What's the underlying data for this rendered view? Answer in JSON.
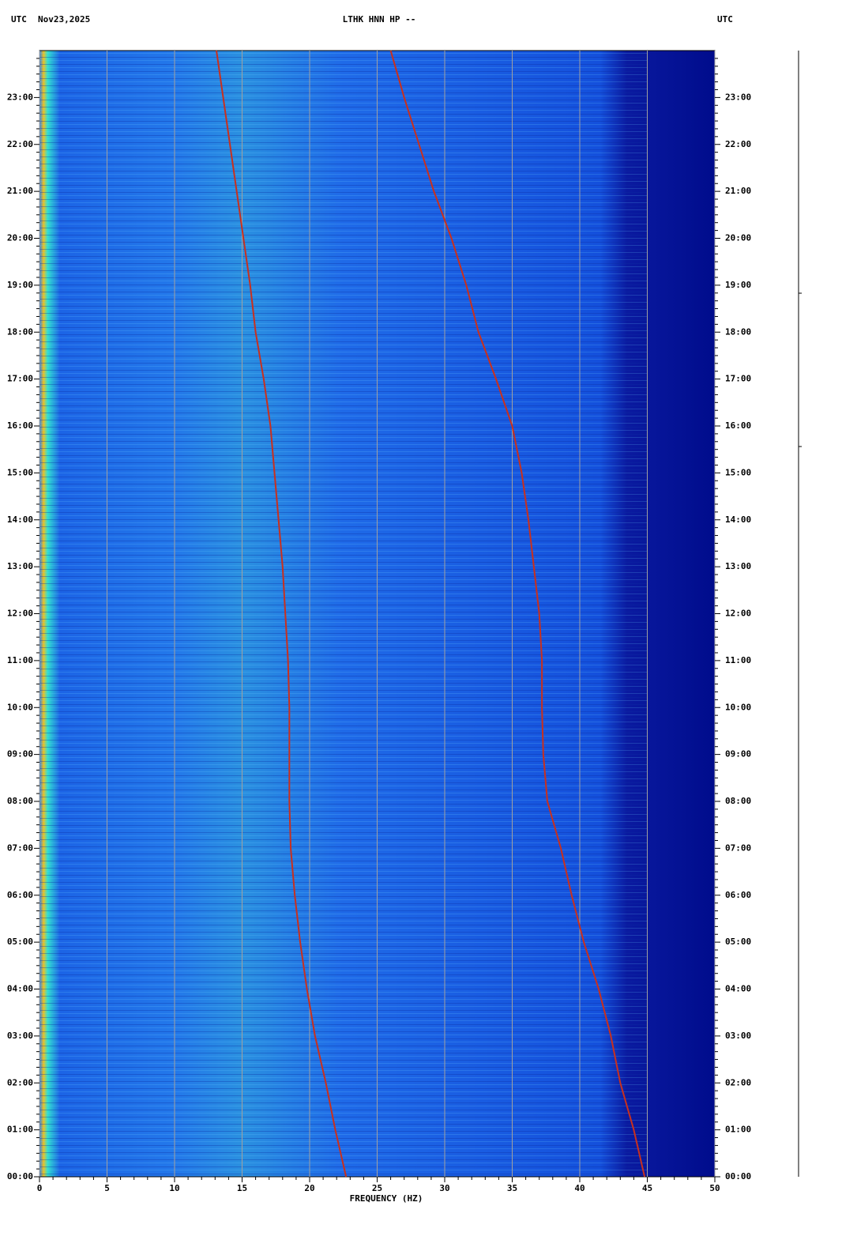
{
  "chart_data": {
    "type": "spectrogram",
    "header_left_1": "UTC",
    "header_left_2": "Nov23,2025",
    "title": "LTHK HNN HP --",
    "header_right": "UTC",
    "xlabel": "FREQUENCY (HZ)",
    "xlim": [
      0,
      50
    ],
    "xticks": [
      0,
      5,
      10,
      15,
      20,
      25,
      30,
      35,
      40,
      45,
      50
    ],
    "ylim": [
      0,
      24
    ],
    "yticks": [
      {
        "value": 0,
        "label": "00:00"
      },
      {
        "value": 1,
        "label": "01:00"
      },
      {
        "value": 2,
        "label": "02:00"
      },
      {
        "value": 3,
        "label": "03:00"
      },
      {
        "value": 4,
        "label": "04:00"
      },
      {
        "value": 5,
        "label": "05:00"
      },
      {
        "value": 6,
        "label": "06:00"
      },
      {
        "value": 7,
        "label": "07:00"
      },
      {
        "value": 8,
        "label": "08:00"
      },
      {
        "value": 9,
        "label": "09:00"
      },
      {
        "value": 10,
        "label": "10:00"
      },
      {
        "value": 11,
        "label": "11:00"
      },
      {
        "value": 12,
        "label": "12:00"
      },
      {
        "value": 13,
        "label": "13:00"
      },
      {
        "value": 14,
        "label": "14:00"
      },
      {
        "value": 15,
        "label": "15:00"
      },
      {
        "value": 16,
        "label": "16:00"
      },
      {
        "value": 17,
        "label": "17:00"
      },
      {
        "value": 18,
        "label": "18:00"
      },
      {
        "value": 19,
        "label": "19:00"
      },
      {
        "value": 20,
        "label": "20:00"
      },
      {
        "value": 21,
        "label": "21:00"
      },
      {
        "value": 22,
        "label": "22:00"
      },
      {
        "value": 23,
        "label": "23:00"
      }
    ],
    "grid": true,
    "series": [
      {
        "color": "#c8301e",
        "x": [
          22.7,
          21.9,
          21.2,
          20.4,
          19.8,
          19.3,
          18.9,
          18.6,
          18.5,
          18.5,
          18.5,
          18.4,
          18.2,
          18.0,
          17.7,
          17.4,
          17.1,
          16.6,
          16.0,
          15.6,
          15.1,
          14.6,
          14.1,
          13.6,
          13.1
        ],
        "y": [
          0,
          1,
          2,
          3,
          4,
          5,
          6,
          7,
          8,
          9,
          10,
          11,
          12,
          13,
          14,
          15,
          16,
          17,
          18,
          19,
          20,
          21,
          22,
          23,
          24
        ]
      },
      {
        "color": "#c8301e",
        "x": [
          44.8,
          44.0,
          43.0,
          42.3,
          41.4,
          40.3,
          39.4,
          38.6,
          37.6,
          37.3,
          37.2,
          37.2,
          37.0,
          36.6,
          36.2,
          35.7,
          35.0,
          33.8,
          32.5,
          31.6,
          30.5,
          29.2,
          28.1,
          27.0,
          26.0
        ],
        "y": [
          0,
          1,
          2,
          3,
          4,
          5,
          6,
          7,
          8,
          9,
          10,
          11,
          12,
          13,
          14,
          15,
          16,
          17,
          18,
          19,
          20,
          21,
          22,
          23,
          24
        ]
      }
    ]
  }
}
